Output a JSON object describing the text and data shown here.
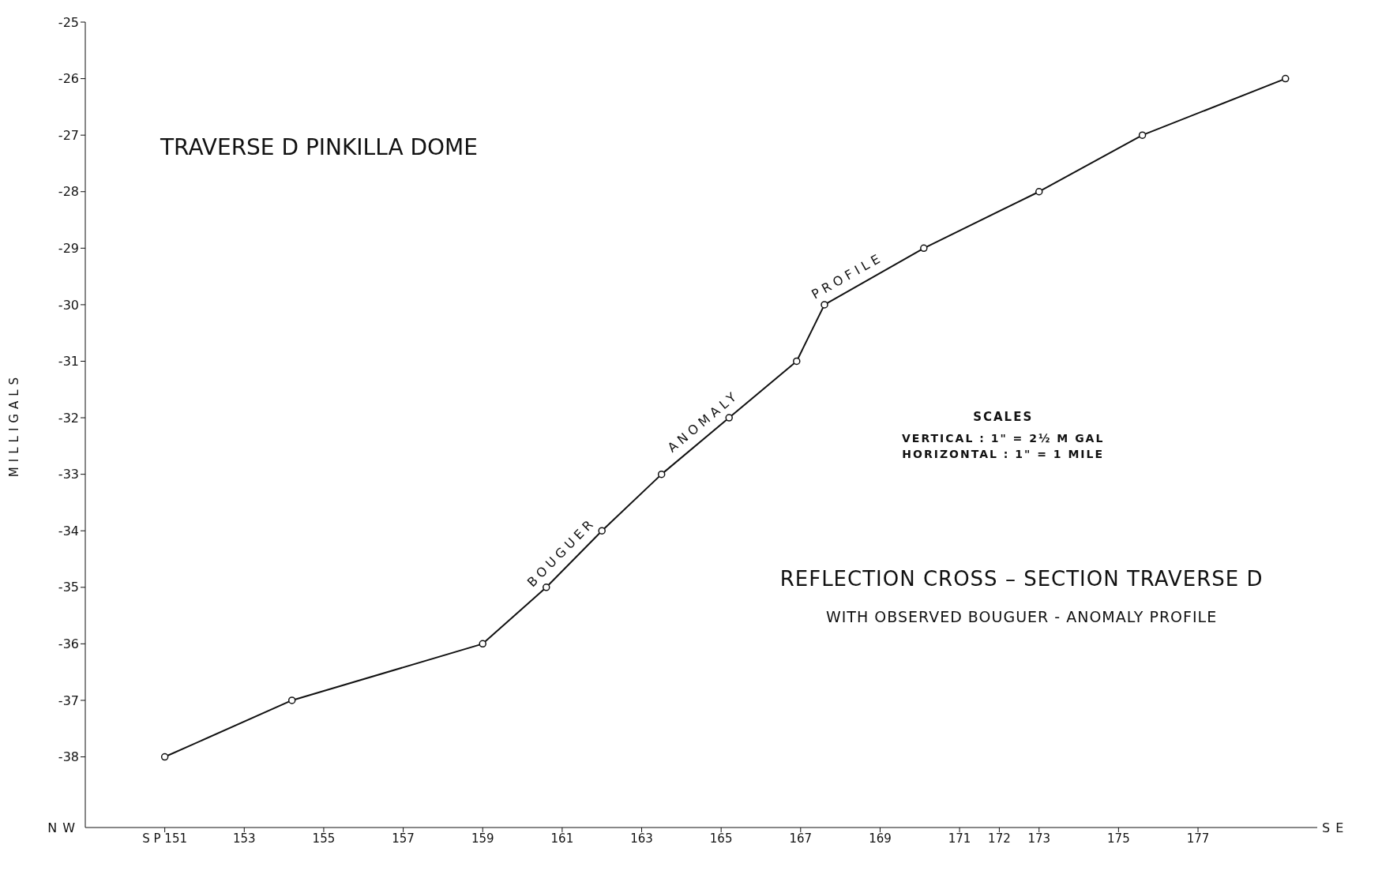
{
  "chart_data": {
    "type": "line",
    "title": "TRAVERSE  D  PINKILLA DOME",
    "ylabel": "MILLIGALS",
    "x": [
      151,
      154.2,
      159,
      160.6,
      162,
      163.5,
      165.2,
      166.9,
      167.6,
      170.1,
      173,
      175.6,
      179.2
    ],
    "series": [
      {
        "color": "#111111",
        "values": [
          -38,
          -37,
          -36,
          -35,
          -34,
          -33,
          -32,
          -31,
          -30,
          -29,
          -28,
          -27,
          -26
        ]
      }
    ],
    "xlim": [
      149,
      180
    ],
    "xticks": [
      {
        "value": 151,
        "label": "S P 151"
      },
      153,
      155,
      157,
      159,
      161,
      163,
      165,
      167,
      169,
      171,
      172,
      173,
      175,
      177
    ],
    "ylim": [
      -39.25,
      -25
    ],
    "yticks": [
      -25,
      -26,
      -27,
      -28,
      -29,
      -30,
      -31,
      -32,
      -33,
      -34,
      -35,
      -36,
      -37,
      -38
    ],
    "marker": "circle",
    "line_style": "solid",
    "annotations": [
      "BOUGUER",
      "ANOMALY",
      "PROFILE",
      "REFLECTION  CROSS – SECTION  TRAVERSE  D",
      "WITH  OBSERVED  BOUGUER - ANOMALY  PROFILE",
      "SCALES",
      "VERTICAL :  1\" = 2½  M GAL",
      "HORIZONTAL :  1\" = 1 MILE",
      "N W",
      "S E"
    ]
  }
}
